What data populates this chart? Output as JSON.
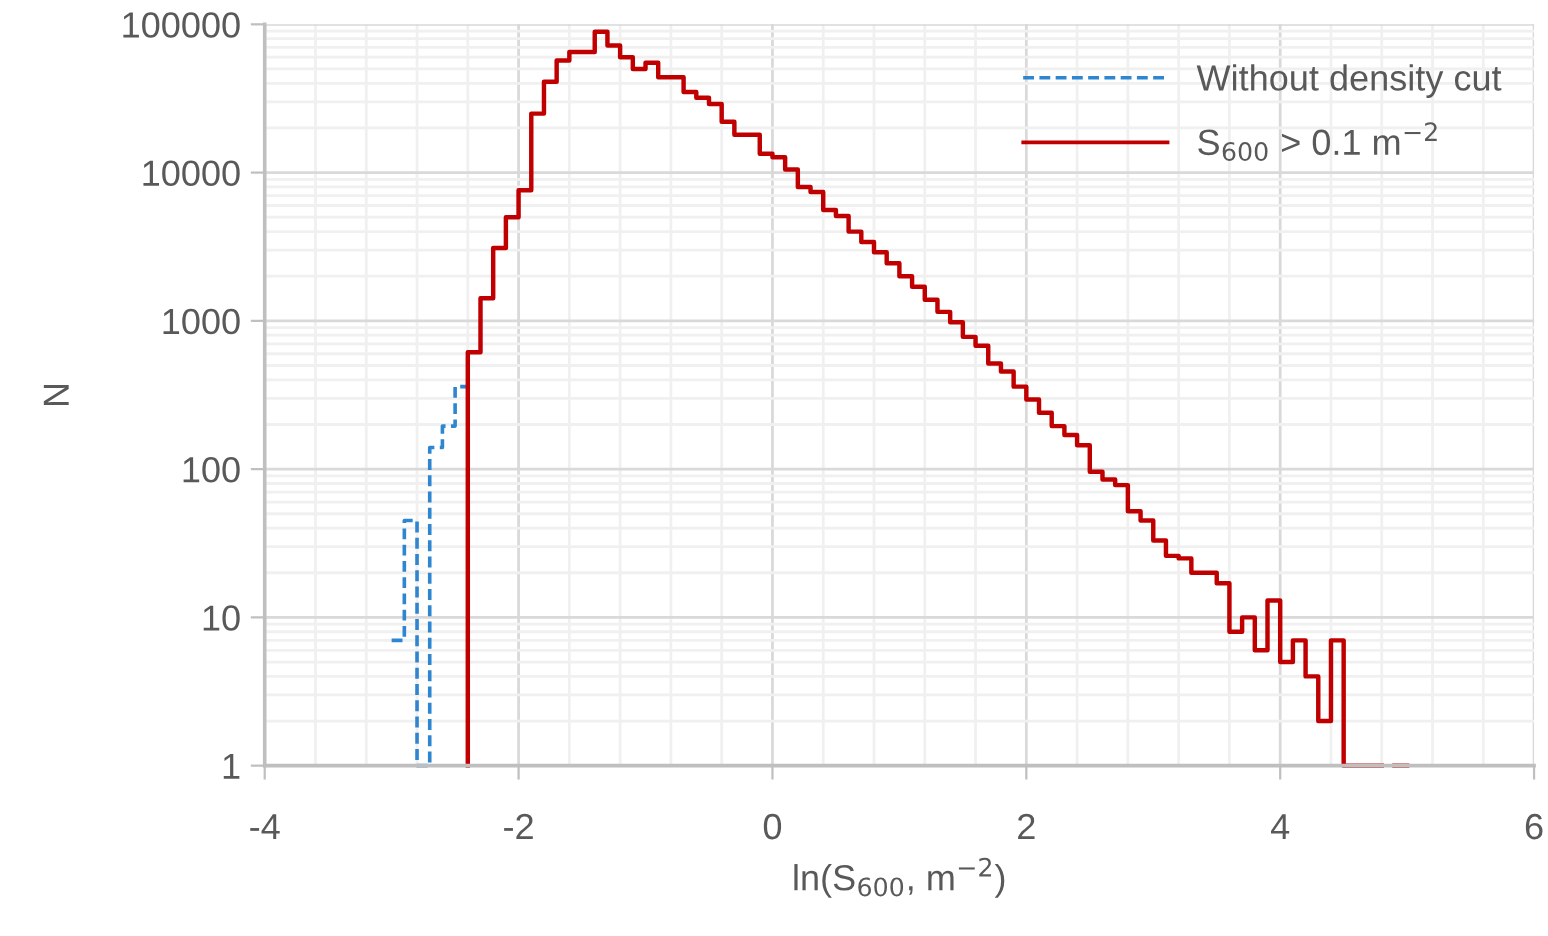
{
  "chart_data": {
    "type": "step",
    "xlabel": "ln(S$_{600}$, m$^{−2}$)",
    "ylabel": "N",
    "series": [
      {
        "name": "Without density cut",
        "color": "#2e86d0",
        "line_style": "dashed",
        "x": [
          -3.0,
          -2.9,
          -2.8,
          -2.7,
          -2.6,
          -2.5,
          -2.4
        ],
        "values": [
          7,
          45,
          1,
          140,
          195,
          360,
          360
        ]
      },
      {
        "name": "S$_{600}$ > 0.1 m$^{−2}$",
        "color": "#c00000",
        "line_style": "solid",
        "x": [
          -2.4,
          -2.4,
          -2.3,
          -2.2,
          -2.1,
          -2.0,
          -1.9,
          -1.8,
          -1.7,
          -1.6,
          -1.5,
          -1.4,
          -1.3,
          -1.2,
          -1.1,
          -1.0,
          -0.9,
          -0.8,
          -0.7,
          -0.6,
          -0.5,
          -0.4,
          -0.3,
          -0.2,
          -0.1,
          0.0,
          0.1,
          0.2,
          0.3,
          0.4,
          0.5,
          0.6,
          0.7,
          0.8,
          0.9,
          1.0,
          1.1,
          1.2,
          1.3,
          1.4,
          1.5,
          1.6,
          1.7,
          1.8,
          1.9,
          2.0,
          2.1,
          2.2,
          2.3,
          2.4,
          2.5,
          2.6,
          2.7,
          2.8,
          2.9,
          3.0,
          3.1,
          3.2,
          3.3,
          3.4,
          3.5,
          3.6,
          3.7,
          3.8,
          3.9,
          4.0,
          4.1,
          4.2,
          4.3,
          4.4,
          4.5,
          4.6,
          4.7,
          4.8,
          4.9,
          5.0
        ],
        "values": [
          1,
          615,
          1420,
          3100,
          5000,
          7600,
          25000,
          41000,
          57000,
          65000,
          65000,
          89000,
          72000,
          60000,
          50000,
          55000,
          44000,
          44000,
          35000,
          32000,
          29000,
          22000,
          18000,
          18000,
          13400,
          12700,
          10500,
          8000,
          7400,
          5600,
          5100,
          4000,
          3400,
          2900,
          2450,
          2000,
          1700,
          1390,
          1150,
          980,
          780,
          680,
          515,
          455,
          360,
          295,
          240,
          195,
          170,
          145,
          96,
          85,
          78,
          52,
          45,
          33,
          26,
          25,
          20,
          20,
          17,
          8,
          10,
          6,
          13,
          5,
          7,
          4,
          2,
          7,
          1,
          1,
          1,
          null,
          1,
          1
        ]
      }
    ],
    "log": "y",
    "xlim": [
      -4,
      6
    ],
    "xticks": [
      -4,
      -2,
      0,
      2,
      4,
      6
    ],
    "ylim": [
      1,
      100000
    ],
    "yticks": [
      1,
      10,
      100,
      1000,
      10000,
      100000
    ],
    "grid": true,
    "legend": "top right"
  }
}
